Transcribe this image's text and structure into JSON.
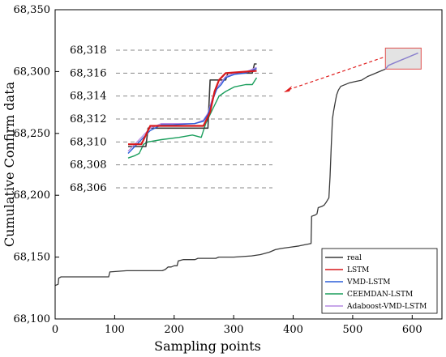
{
  "chart_data": {
    "type": "line",
    "xlabel": "Sampling points",
    "ylabel": "Cumulative Confirm data",
    "xlim": [
      0,
      650
    ],
    "ylim": [
      68100,
      68350
    ],
    "xticks": [
      "0",
      "100",
      "200",
      "300",
      "400",
      "500",
      "600"
    ],
    "yticks": [
      "68,100",
      "68,150",
      "68,200",
      "68,250",
      "68,300",
      "68,350"
    ],
    "legend_position": "bottom-right",
    "main_series": {
      "name": "real",
      "color": "#3a3a3a",
      "points": [
        [
          0,
          68127
        ],
        [
          5,
          68128
        ],
        [
          6,
          68133
        ],
        [
          10,
          68134
        ],
        [
          30,
          68134
        ],
        [
          60,
          68134
        ],
        [
          90,
          68134
        ],
        [
          92,
          68138
        ],
        [
          120,
          68139
        ],
        [
          150,
          68139
        ],
        [
          180,
          68139
        ],
        [
          185,
          68140
        ],
        [
          190,
          68142
        ],
        [
          195,
          68142
        ],
        [
          200,
          68143
        ],
        [
          205,
          68143
        ],
        [
          207,
          68147
        ],
        [
          215,
          68148
        ],
        [
          235,
          68148
        ],
        [
          240,
          68149
        ],
        [
          270,
          68149
        ],
        [
          275,
          68150
        ],
        [
          300,
          68150
        ],
        [
          330,
          68151
        ],
        [
          345,
          68152
        ],
        [
          360,
          68154
        ],
        [
          370,
          68156
        ],
        [
          380,
          68157
        ],
        [
          395,
          68158
        ],
        [
          410,
          68159
        ],
        [
          420,
          68160
        ],
        [
          430,
          68161
        ],
        [
          431,
          68183
        ],
        [
          437,
          68184
        ],
        [
          440,
          68185
        ],
        [
          442,
          68190
        ],
        [
          448,
          68191
        ],
        [
          452,
          68192
        ],
        [
          455,
          68194
        ],
        [
          460,
          68198
        ],
        [
          462,
          68215
        ],
        [
          464,
          68240
        ],
        [
          466,
          68262
        ],
        [
          468,
          68268
        ],
        [
          471,
          68276
        ],
        [
          473,
          68281
        ],
        [
          476,
          68285
        ],
        [
          480,
          68288
        ],
        [
          485,
          68289
        ],
        [
          495,
          68291
        ],
        [
          505,
          68292
        ],
        [
          515,
          68293
        ],
        [
          525,
          68296
        ],
        [
          535,
          68298
        ],
        [
          545,
          68300
        ],
        [
          550,
          68301
        ],
        [
          555,
          68302
        ],
        [
          560,
          68305
        ],
        [
          570,
          68307
        ],
        [
          580,
          68309
        ],
        [
          590,
          68311
        ],
        [
          600,
          68313
        ],
        [
          605,
          68314
        ],
        [
          610,
          68315
        ]
      ]
    },
    "highlight_box": {
      "x": [
        555,
        615
      ],
      "y": [
        68302,
        68319
      ]
    },
    "inset": {
      "yticks": [
        "68,306",
        "68,308",
        "68,310",
        "68,312",
        "68,314",
        "68,316",
        "68,318"
      ],
      "ylim": [
        68305.6,
        68318.6
      ],
      "xlim": [
        555,
        615
      ],
      "series": [
        {
          "name": "real",
          "color": "#3a3a3a",
          "values": [
            [
              555,
              68309.6
            ],
            [
              563,
              68309.6
            ],
            [
              564,
              68311.2
            ],
            [
              591,
              68311.2
            ],
            [
              592,
              68315.4
            ],
            [
              599,
              68315.4
            ],
            [
              600,
              68316.0
            ],
            [
              611,
              68316.0
            ],
            [
              612,
              68316.8
            ],
            [
              613,
              68316.8
            ]
          ]
        },
        {
          "name": "LSTM",
          "color": "#d7191c",
          "values": [
            [
              555,
              68309.8
            ],
            [
              561,
              68309.8
            ],
            [
              565,
              68311.4
            ],
            [
              589,
              68311.4
            ],
            [
              592,
              68312.6
            ],
            [
              594,
              68314.4
            ],
            [
              596,
              68315.4
            ],
            [
              599,
              68316.0
            ],
            [
              613,
              68316.2
            ]
          ]
        },
        {
          "name": "VMD-LSTM",
          "color": "#2b5fd9",
          "values": [
            [
              555,
              68309.0
            ],
            [
              558,
              68309.6
            ],
            [
              561,
              68310.2
            ],
            [
              565,
              68311.0
            ],
            [
              570,
              68311.5
            ],
            [
              575,
              68311.5
            ],
            [
              585,
              68311.6
            ],
            [
              589,
              68311.8
            ],
            [
              591,
              68312.4
            ],
            [
              593,
              68313.6
            ],
            [
              595,
              68314.6
            ],
            [
              597,
              68315.0
            ],
            [
              599,
              68315.6
            ],
            [
              603,
              68315.9
            ],
            [
              608,
              68316.0
            ],
            [
              613,
              68316.4
            ]
          ]
        },
        {
          "name": "CEEMDAN-LSTM",
          "color": "#1a9e5c",
          "values": [
            [
              555,
              68308.6
            ],
            [
              558,
              68308.8
            ],
            [
              560,
              68309.0
            ],
            [
              562,
              68309.8
            ],
            [
              564,
              68310.0
            ],
            [
              570,
              68310.2
            ],
            [
              578,
              68310.4
            ],
            [
              584,
              68310.6
            ],
            [
              588,
              68310.4
            ],
            [
              590,
              68311.6
            ],
            [
              592,
              68312.4
            ],
            [
              594,
              68313.2
            ],
            [
              596,
              68314.0
            ],
            [
              599,
              68314.4
            ],
            [
              603,
              68314.8
            ],
            [
              608,
              68315.0
            ],
            [
              611,
              68315.0
            ],
            [
              613,
              68315.6
            ]
          ]
        },
        {
          "name": "Adaboost-VMD-LSTM",
          "color": "#b68ae3",
          "values": [
            [
              555,
              68309.2
            ],
            [
              558,
              68309.8
            ],
            [
              561,
              68310.4
            ],
            [
              565,
              68311.2
            ],
            [
              570,
              68311.6
            ],
            [
              575,
              68311.6
            ],
            [
              585,
              68311.6
            ],
            [
              589,
              68311.9
            ],
            [
              591,
              68312.5
            ],
            [
              593,
              68313.8
            ],
            [
              595,
              68314.7
            ],
            [
              597,
              68315.2
            ],
            [
              599,
              68315.7
            ],
            [
              603,
              68316.0
            ],
            [
              608,
              68316.1
            ],
            [
              613,
              68316.5
            ]
          ]
        }
      ]
    },
    "legend": [
      {
        "name": "real",
        "color": "#3a3a3a"
      },
      {
        "name": "LSTM",
        "color": "#d7191c"
      },
      {
        "name": "VMD-LSTM",
        "color": "#2b5fd9"
      },
      {
        "name": "CEEMDAN-LSTM",
        "color": "#1a9e5c"
      },
      {
        "name": "Adaboost-VMD-LSTM",
        "color": "#b68ae3"
      }
    ]
  }
}
